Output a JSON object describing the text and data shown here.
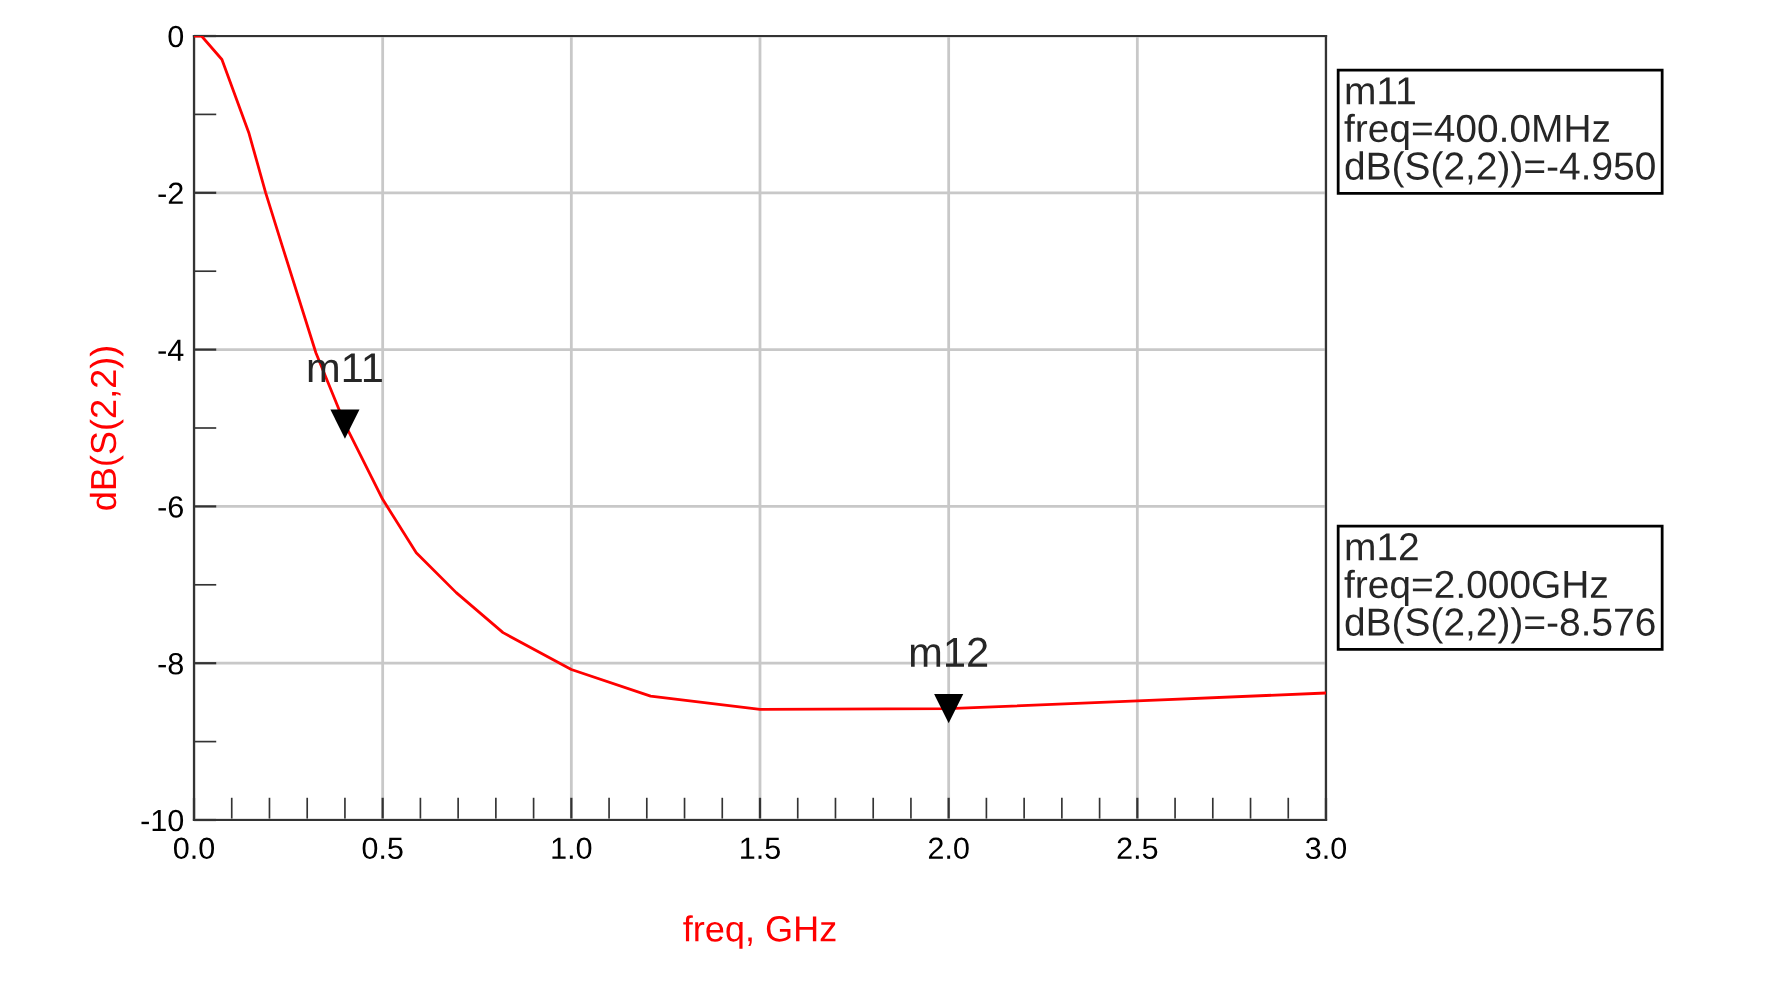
{
  "chart_data": {
    "type": "line",
    "xlabel": "freq, GHz",
    "ylabel": "dB(S(2,2))",
    "series": [
      {
        "color": "#ff0000",
        "x": [
          0,
          0.02,
          0.074,
          0.145,
          0.19,
          0.234,
          0.323,
          0.4,
          0.5,
          0.589,
          0.695,
          0.819,
          1.0,
          1.21,
          1.5,
          2.0,
          2.5,
          3.0
        ],
        "values": [
          0,
          0,
          -0.3,
          -1.23,
          -2.0,
          -2.68,
          -4.04,
          -4.95,
          -5.91,
          -6.59,
          -7.1,
          -7.61,
          -8.08,
          -8.42,
          -8.59,
          -8.58,
          -8.48,
          -8.38
        ]
      },
      {
        "type": "scatter",
        "color": "#000000",
        "marker": "triangle",
        "x": [
          0.4,
          2.0
        ],
        "values": [
          -4.95,
          -8.58
        ]
      }
    ],
    "xlim": [
      0,
      3.0
    ],
    "ylim": [
      -10,
      0
    ],
    "xticks": [
      {
        "value": 0,
        "label": "0.0"
      },
      {
        "value": 0.1,
        "label": null
      },
      {
        "value": 0.2,
        "label": null
      },
      {
        "value": 0.3,
        "label": null
      },
      {
        "value": 0.4,
        "label": null
      },
      {
        "value": 0.5,
        "label": "0.5"
      },
      {
        "value": 0.6,
        "label": null
      },
      {
        "value": 0.7,
        "label": null
      },
      {
        "value": 0.8,
        "label": null
      },
      {
        "value": 0.9,
        "label": null
      },
      {
        "value": 1.0,
        "label": "1.0"
      },
      {
        "value": 1.1,
        "label": null
      },
      {
        "value": 1.2,
        "label": null
      },
      {
        "value": 1.3,
        "label": null
      },
      {
        "value": 1.4,
        "label": null
      },
      {
        "value": 1.5,
        "label": "1.5"
      },
      {
        "value": 1.6,
        "label": null
      },
      {
        "value": 1.7,
        "label": null
      },
      {
        "value": 1.8,
        "label": null
      },
      {
        "value": 1.9,
        "label": null
      },
      {
        "value": 2.0,
        "label": "2.0"
      },
      {
        "value": 2.1,
        "label": null
      },
      {
        "value": 2.2,
        "label": null
      },
      {
        "value": 2.3,
        "label": null
      },
      {
        "value": 2.4,
        "label": null
      },
      {
        "value": 2.5,
        "label": "2.5"
      },
      {
        "value": 2.6,
        "label": null
      },
      {
        "value": 2.7,
        "label": null
      },
      {
        "value": 2.8,
        "label": null
      },
      {
        "value": 2.9,
        "label": null
      },
      {
        "value": 3.0,
        "label": "3.0"
      }
    ],
    "yticks": [
      0,
      {
        "value": -1,
        "label": null
      },
      -2,
      {
        "value": -3,
        "label": null
      },
      -4,
      {
        "value": -5,
        "label": null
      },
      -6,
      {
        "value": -7,
        "label": null
      },
      -8,
      {
        "value": -9,
        "label": null
      },
      -10
    ],
    "grid": true,
    "annotations": [
      {
        "text": "m11",
        "x": 0.4,
        "y": -4.95
      },
      {
        "text": "m12",
        "x": 2.0,
        "y": -8.58
      },
      "m11\nfreq=400.0MHz\ndB(S(2,2))=-4.950",
      "m12\nfreq=2.000GHz\ndB(S(2,2))=-8.576"
    ]
  }
}
